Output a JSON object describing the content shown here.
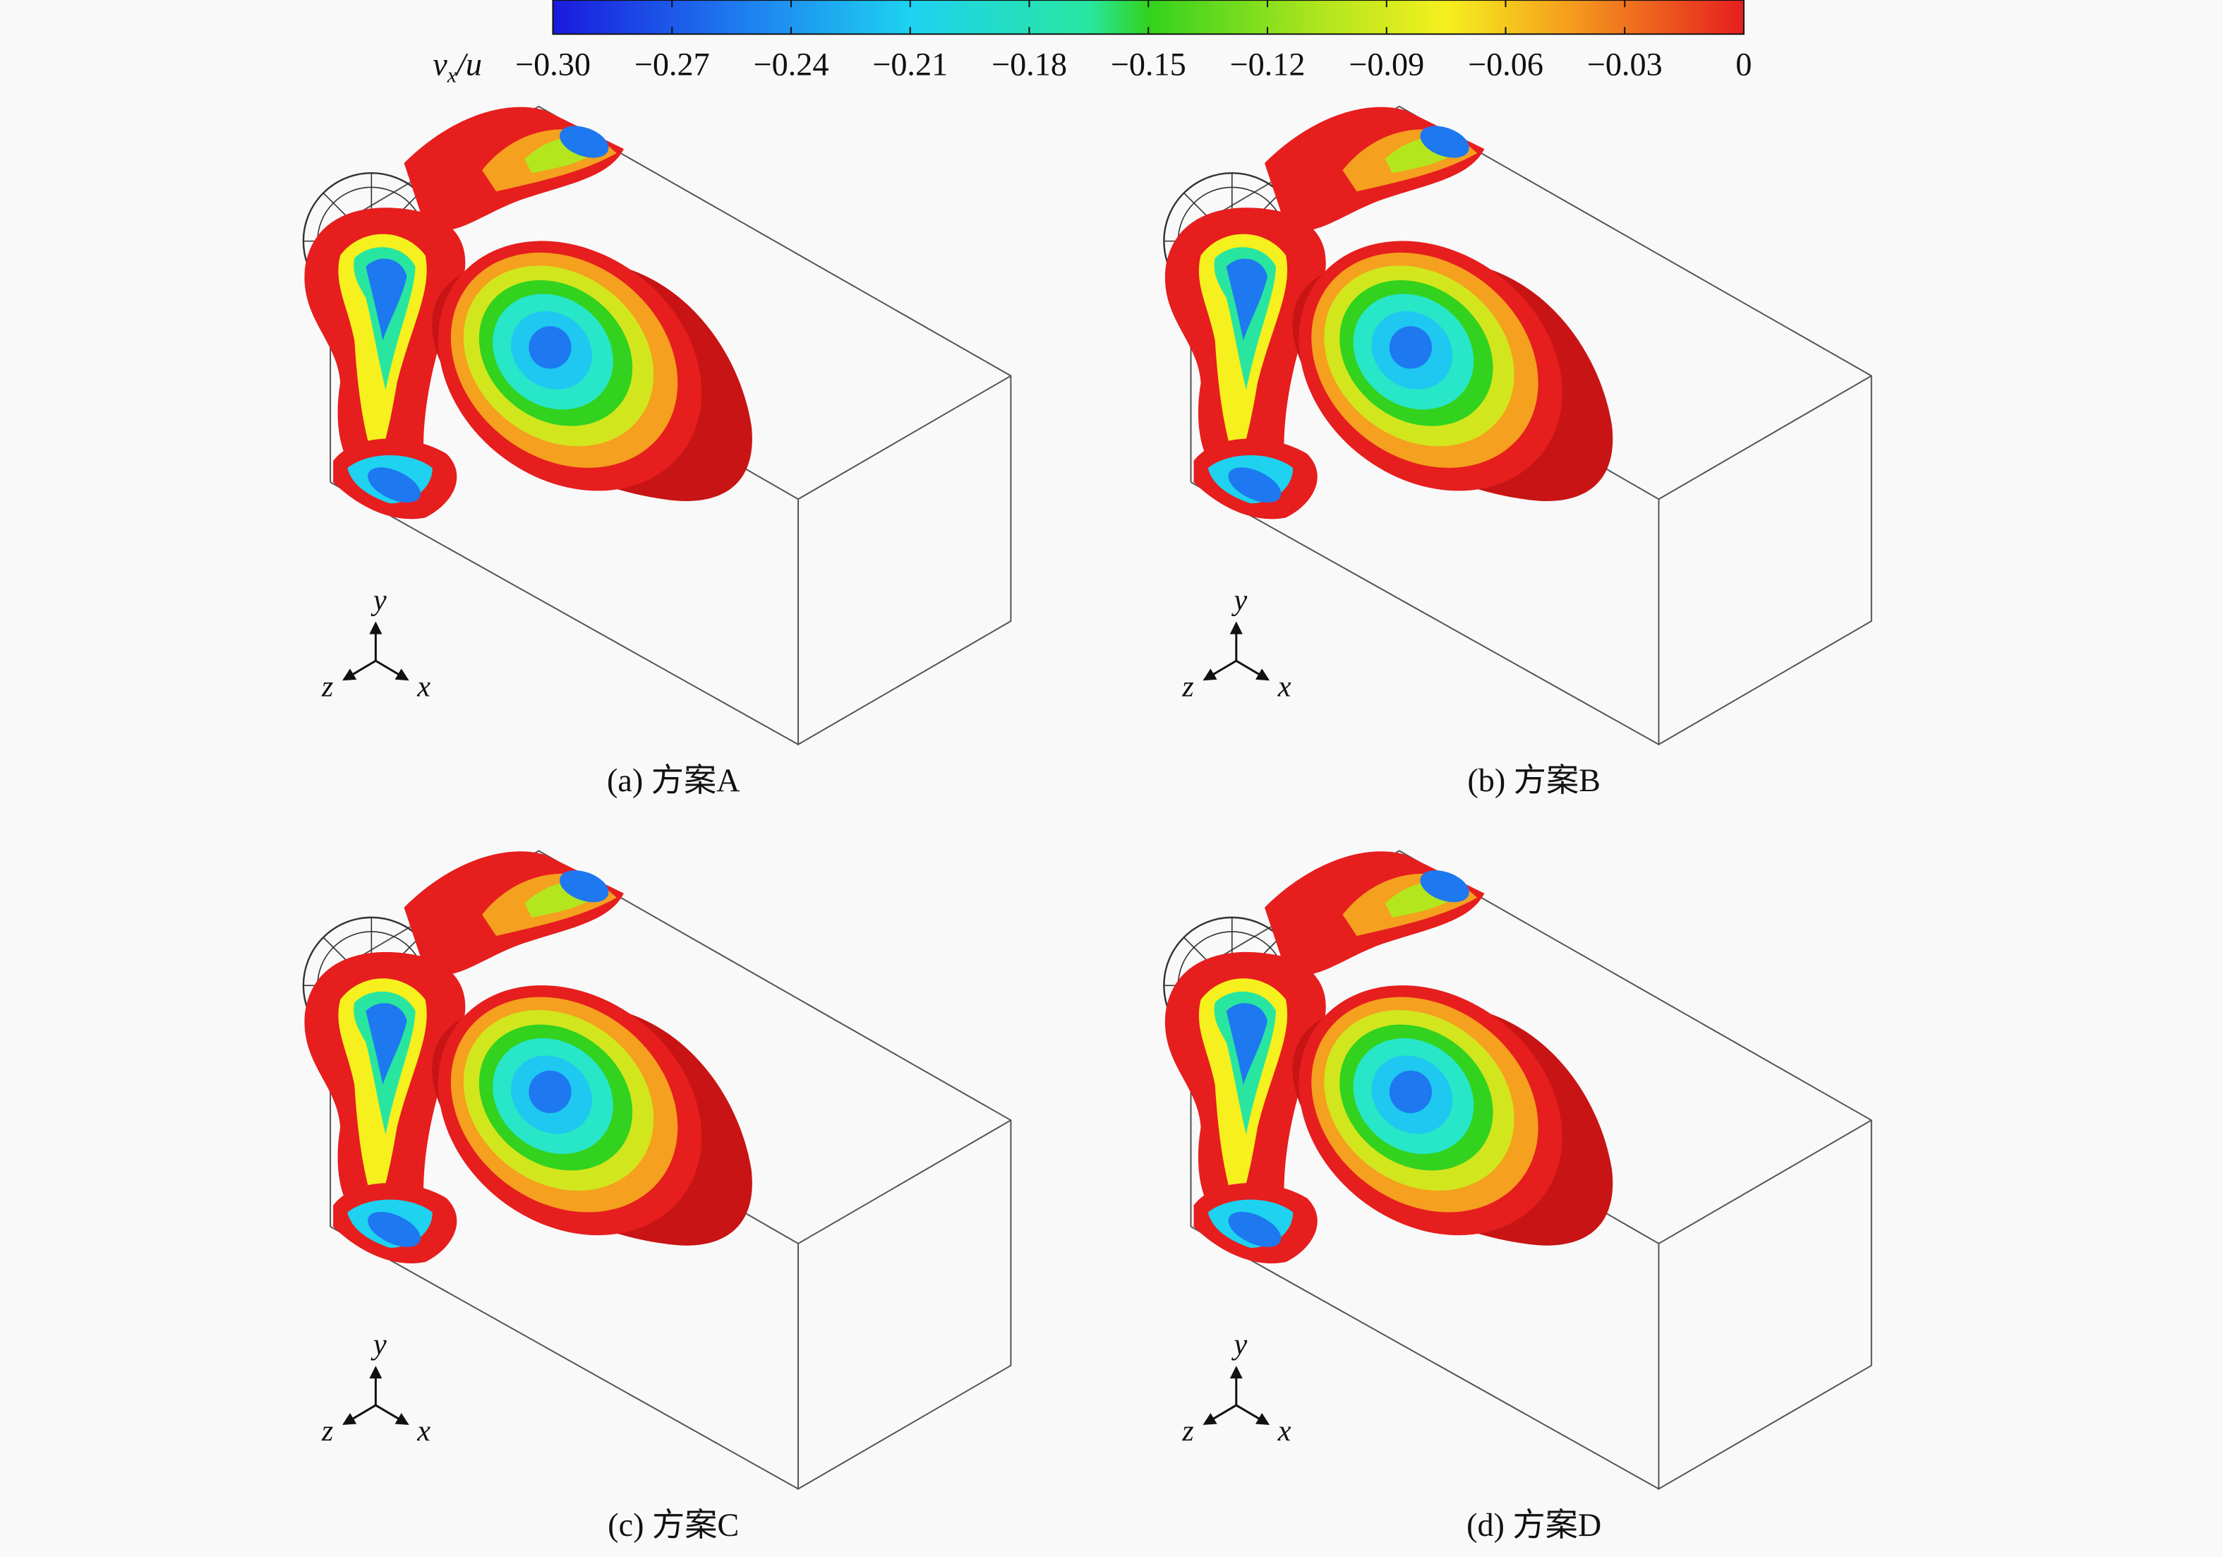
{
  "colorbar": {
    "label": {
      "symbol": "v",
      "subscript": "x",
      "tail": "/u"
    },
    "range": [
      -0.3,
      0
    ],
    "ticks": [
      {
        "value": -0.3,
        "label": "−0.30"
      },
      {
        "value": -0.27,
        "label": "−0.27"
      },
      {
        "value": -0.24,
        "label": "−0.24"
      },
      {
        "value": -0.21,
        "label": "−0.21"
      },
      {
        "value": -0.18,
        "label": "−0.18"
      },
      {
        "value": -0.15,
        "label": "−0.15"
      },
      {
        "value": -0.12,
        "label": "−0.12"
      },
      {
        "value": -0.09,
        "label": "−0.09"
      },
      {
        "value": -0.06,
        "label": "−0.06"
      },
      {
        "value": -0.03,
        "label": "−0.03"
      },
      0
    ]
  },
  "panels": [
    {
      "caption": "(a) 方案A",
      "axis_labels": {
        "y": "y",
        "z": "z",
        "x": "x"
      }
    },
    {
      "caption": "(b) 方案B",
      "axis_labels": {
        "y": "y",
        "z": "z",
        "x": "x"
      }
    },
    {
      "caption": "(c) 方案C",
      "axis_labels": {
        "y": "y",
        "z": "z",
        "x": "x"
      }
    },
    {
      "caption": "(d) 方案D",
      "axis_labels": {
        "y": "y",
        "z": "z",
        "x": "x"
      }
    }
  ]
}
